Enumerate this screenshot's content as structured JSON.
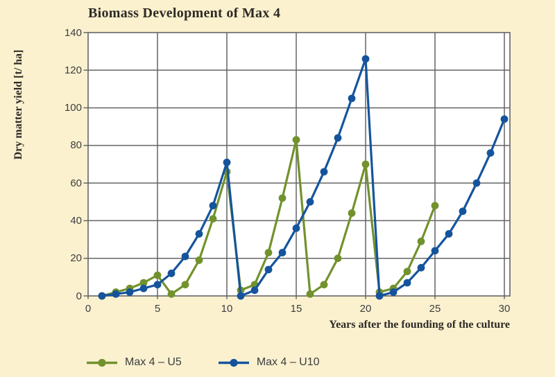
{
  "colors": {
    "background": "#fbf1cf",
    "plot_background": "#ffffff",
    "grid": "#646466",
    "series_green": "#71922c",
    "series_blue": "#15549d",
    "title_text": "#2e2a25",
    "tick_text": "#3d3d3f"
  },
  "chart_data": {
    "type": "line",
    "title": "Biomass Development of Max 4",
    "xlabel": "Years after the founding of the culture",
    "ylabel": "Dry matter yield [t/ ha]",
    "xlim": [
      0,
      30.4
    ],
    "ylim": [
      0,
      140
    ],
    "x_ticks": [
      0,
      5,
      10,
      15,
      20,
      25,
      30
    ],
    "y_ticks": [
      0,
      20,
      40,
      60,
      80,
      100,
      120,
      140
    ],
    "grid": true,
    "legend_position": "bottom",
    "series": [
      {
        "name": "Max 4 – U5",
        "color": "#71922c",
        "x": [
          1,
          2,
          3,
          4,
          5,
          6,
          7,
          8,
          9,
          10,
          11,
          12,
          13,
          14,
          15,
          16,
          17,
          18,
          19,
          20,
          21,
          22,
          23,
          24,
          25
        ],
        "values": [
          0,
          2,
          4,
          7,
          11,
          1,
          6,
          19,
          41,
          66,
          3,
          6,
          23,
          52,
          83,
          1,
          6,
          20,
          44,
          70,
          2,
          4,
          13,
          29,
          48
        ]
      },
      {
        "name": "Max 4 – U10",
        "color": "#15549d",
        "x": [
          1,
          2,
          3,
          4,
          5,
          6,
          7,
          8,
          9,
          10,
          11,
          12,
          13,
          14,
          15,
          16,
          17,
          18,
          19,
          20,
          21,
          22,
          23,
          24,
          25,
          26,
          27,
          28,
          29,
          30
        ],
        "values": [
          0,
          1,
          2,
          4,
          6,
          12,
          21,
          33,
          48,
          71,
          0,
          3,
          14,
          23,
          36,
          50,
          66,
          84,
          105,
          126,
          0,
          2,
          7,
          15,
          24,
          33,
          45,
          60,
          76,
          94
        ]
      }
    ]
  }
}
